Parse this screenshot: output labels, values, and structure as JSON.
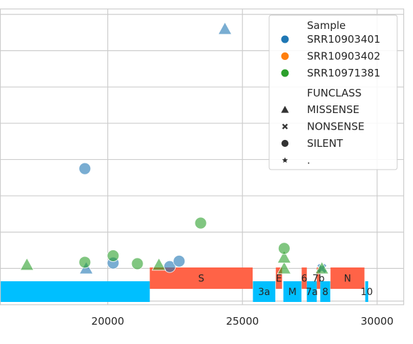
{
  "chart_data": {
    "type": "scatter",
    "xlim": [
      16000,
      31000
    ],
    "ylim": [
      0,
      8.15
    ],
    "x_ticks": [
      20000,
      25000,
      30000
    ],
    "x_tick_labels": [
      "20000",
      "25000",
      "30000"
    ],
    "y_gridlines": [
      0.1,
      1.0,
      2.0,
      3.0,
      4.0,
      5.0,
      6.0,
      7.0,
      8.0
    ],
    "grid": true,
    "legend_position": "top-right",
    "series": [
      {
        "name": "SRR10903401",
        "color": "#1f77b4",
        "points": [
          [
            19200,
            1.0,
            "MISSENSE"
          ],
          [
            19150,
            3.75,
            "SILENT"
          ],
          [
            20200,
            1.15,
            "SILENT"
          ],
          [
            22300,
            1.05,
            "SILENT"
          ],
          [
            22650,
            1.2,
            "SILENT"
          ],
          [
            24350,
            7.6,
            "MISSENSE"
          ],
          [
            27950,
            1.0,
            "NONSENSE"
          ]
        ]
      },
      {
        "name": "SRR10903402",
        "color": "#ff7f0e",
        "points": []
      },
      {
        "name": "SRR10971381",
        "color": "#2ca02c",
        "points": [
          [
            17000,
            1.1,
            "MISSENSE"
          ],
          [
            19150,
            1.17,
            "SILENT"
          ],
          [
            20200,
            1.35,
            "SILENT"
          ],
          [
            21100,
            1.13,
            "SILENT"
          ],
          [
            21900,
            1.1,
            "MISSENSE"
          ],
          [
            23450,
            2.25,
            "SILENT"
          ],
          [
            26550,
            1.0,
            "MISSENSE"
          ],
          [
            26550,
            1.3,
            "MISSENSE"
          ],
          [
            26550,
            1.55,
            "SILENT"
          ],
          [
            27950,
            1.0,
            "MISSENSE"
          ]
        ]
      }
    ],
    "genes": [
      {
        "label": "",
        "start": 15500,
        "end": 21560,
        "color": "#00bfff",
        "row": "lower"
      },
      {
        "label": "S",
        "start": 21560,
        "end": 25380,
        "color": "#ff6347",
        "row": "upper"
      },
      {
        "label": "3a",
        "start": 25390,
        "end": 26220,
        "color": "#00bfff",
        "row": "lower"
      },
      {
        "label": "E",
        "start": 26240,
        "end": 26470,
        "color": "#ff6347",
        "row": "upper"
      },
      {
        "label": "M",
        "start": 26520,
        "end": 27190,
        "color": "#00bfff",
        "row": "lower"
      },
      {
        "label": "6",
        "start": 27200,
        "end": 27390,
        "color": "#ff6347",
        "row": "upper"
      },
      {
        "label": "7a",
        "start": 27390,
        "end": 27760,
        "color": "#00bfff",
        "row": "lower"
      },
      {
        "label": "7b",
        "start": 27760,
        "end": 27890,
        "color": "#ff6347",
        "row": "upper"
      },
      {
        "label": "8",
        "start": 27890,
        "end": 28260,
        "color": "#00bfff",
        "row": "lower"
      },
      {
        "label": "N",
        "start": 28270,
        "end": 29530,
        "color": "#ff6347",
        "row": "upper"
      },
      {
        "label": "10",
        "start": 29560,
        "end": 29670,
        "color": "#00bfff",
        "row": "lower"
      }
    ]
  },
  "legend": {
    "sample_title": "Sample",
    "samples": [
      {
        "label": "SRR10903401",
        "color": "#1f77b4"
      },
      {
        "label": "SRR10903402",
        "color": "#ff7f0e"
      },
      {
        "label": "SRR10971381",
        "color": "#2ca02c"
      }
    ],
    "funclass_title": "FUNCLASS",
    "funclasses": [
      {
        "label": "MISSENSE",
        "marker": "triangle"
      },
      {
        "label": "NONSENSE",
        "marker": "x"
      },
      {
        "label": "SILENT",
        "marker": "circle"
      },
      {
        "label": ".",
        "marker": "star"
      }
    ]
  }
}
